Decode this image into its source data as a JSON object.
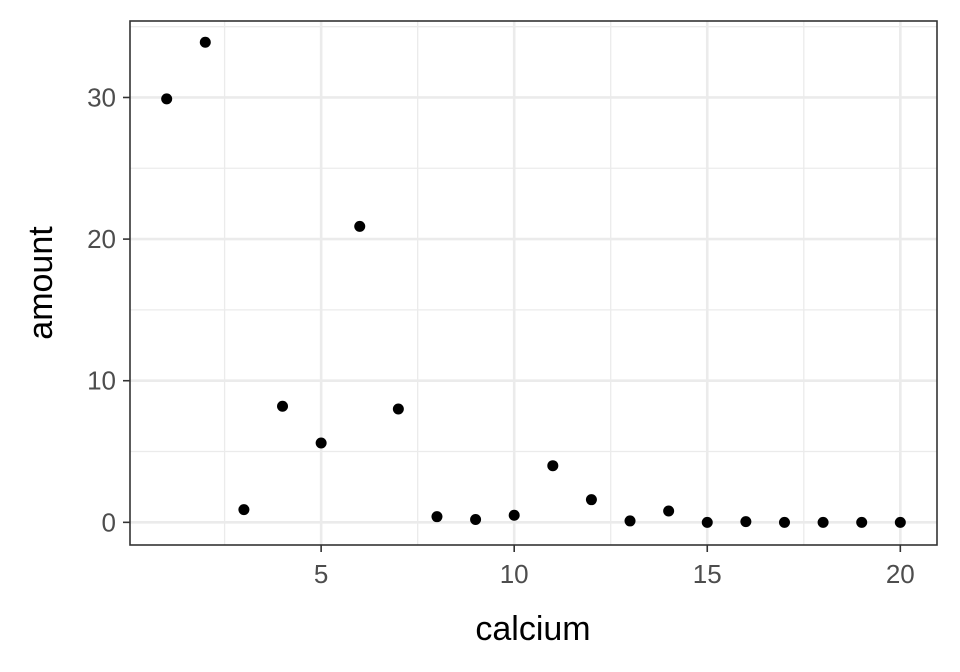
{
  "chart_data": {
    "type": "scatter",
    "title": "",
    "xlabel": "calcium",
    "ylabel": "amount",
    "xlim": [
      0.05,
      20.95
    ],
    "ylim": [
      -1.6,
      35.4
    ],
    "x_ticks": [
      5,
      10,
      15,
      20
    ],
    "x_tick_labels": [
      "5",
      "10",
      "15",
      "20"
    ],
    "y_ticks": [
      0,
      10,
      20,
      30
    ],
    "y_tick_labels": [
      "0",
      "10",
      "20",
      "30"
    ],
    "grid": true,
    "legend": "none",
    "point_color": "#000000",
    "series": [
      {
        "x": [
          1,
          2,
          3,
          4,
          5,
          6,
          7,
          8,
          9,
          10,
          11,
          12,
          13,
          14,
          15,
          16,
          17,
          18,
          19,
          20
        ],
        "y": [
          29.9,
          33.9,
          0.9,
          8.2,
          5.6,
          20.9,
          8.0,
          0.4,
          0.2,
          0.5,
          4.0,
          1.6,
          0.1,
          0.8,
          0.0,
          0.05,
          0.0,
          0.0,
          0.0,
          0.0
        ]
      }
    ]
  }
}
